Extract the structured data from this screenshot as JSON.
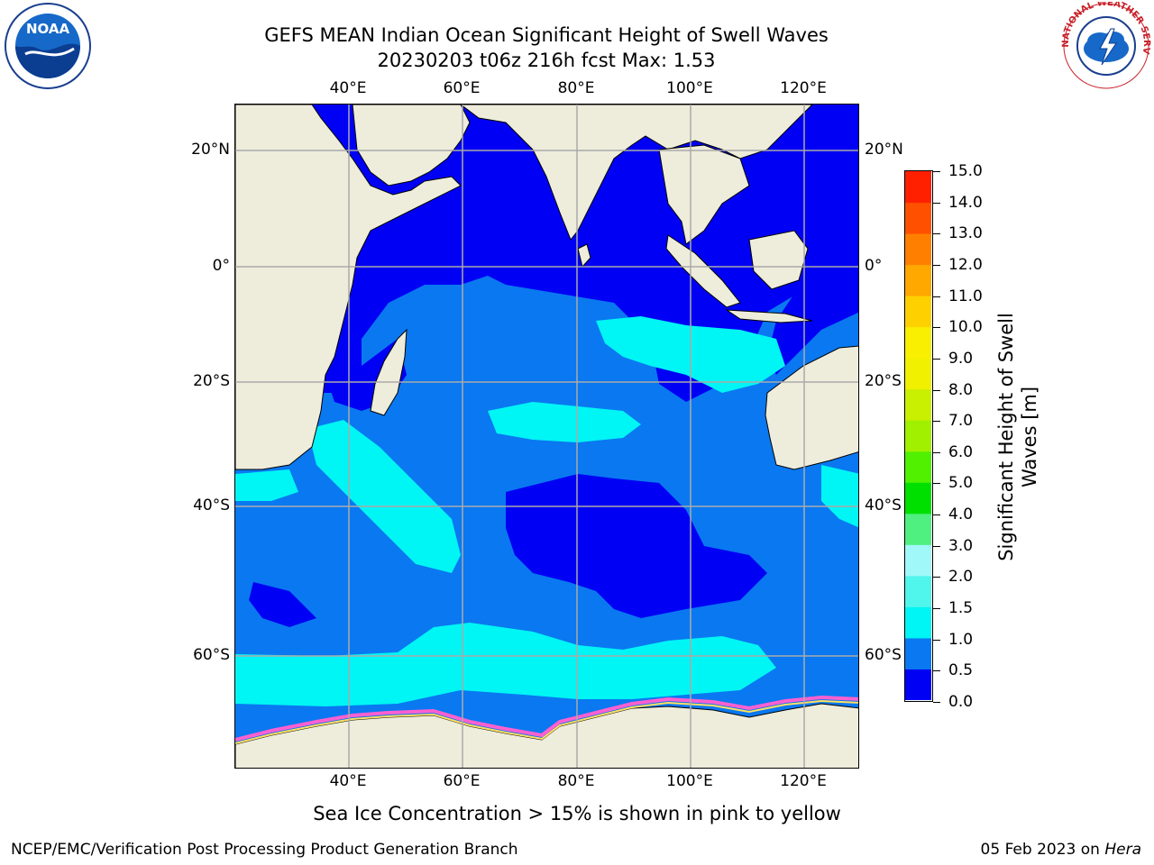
{
  "title_line1": "GEFS MEAN Indian Ocean Significant Height of Swell Waves",
  "title_line2": "20230203 t06z 216h fcst   Max: 1.53",
  "lon_labels": [
    "40°E",
    "60°E",
    "80°E",
    "100°E",
    "120°E"
  ],
  "lat_labels": [
    "20°N",
    "0°",
    "20°S",
    "40°S",
    "60°S"
  ],
  "colorbar": {
    "label_line1": "Significant Height of Swell",
    "label_line2": "Waves [m]",
    "ticks": [
      "0.0",
      "0.5",
      "1.0",
      "1.5",
      "2.0",
      "3.0",
      "4.0",
      "5.0",
      "6.0",
      "7.0",
      "8.0",
      "9.0",
      "10.0",
      "11.0",
      "12.0",
      "13.0",
      "14.0",
      "15.0"
    ],
    "colors": [
      "#0000f5",
      "#0a78f0",
      "#00f5f5",
      "#50f5ec",
      "#a0f8f8",
      "#50f080",
      "#00e000",
      "#50f000",
      "#a0f000",
      "#c8f000",
      "#f0f000",
      "#f8f000",
      "#ffd000",
      "#ffa800",
      "#ff8000",
      "#ff5000",
      "#ff2000",
      "#ff0000"
    ]
  },
  "land_color": "#eeeddc",
  "subtitle": "Sea Ice Concentration > 15% is shown in pink to yellow",
  "footer_left": "NCEP/EMC/Verification Post Processing Product Generation Branch",
  "footer_right_date": "05 Feb 2023 on ",
  "footer_right_host": "Hera",
  "logos": {
    "noaa_text": "NOAA",
    "nws_text": "NATIONAL WEATHER SERVICE"
  },
  "chart_data": {
    "type": "heatmap",
    "title": "GEFS MEAN Indian Ocean Significant Height of Swell Waves",
    "subtitle": "20230203 t06z 216h fcst   Max: 1.53",
    "variable": "Significant Height of Swell Waves [m]",
    "max_value": 1.53,
    "color_scale": [
      0.0,
      0.5,
      1.0,
      1.5,
      2.0,
      3.0,
      4.0,
      5.0,
      6.0,
      7.0,
      8.0,
      9.0,
      10.0,
      11.0,
      12.0,
      13.0,
      14.0,
      15.0
    ],
    "x_ticks": [
      40,
      60,
      80,
      100,
      120
    ],
    "y_ticks": [
      20,
      0,
      -20,
      -40,
      -60
    ],
    "grid": true
  }
}
